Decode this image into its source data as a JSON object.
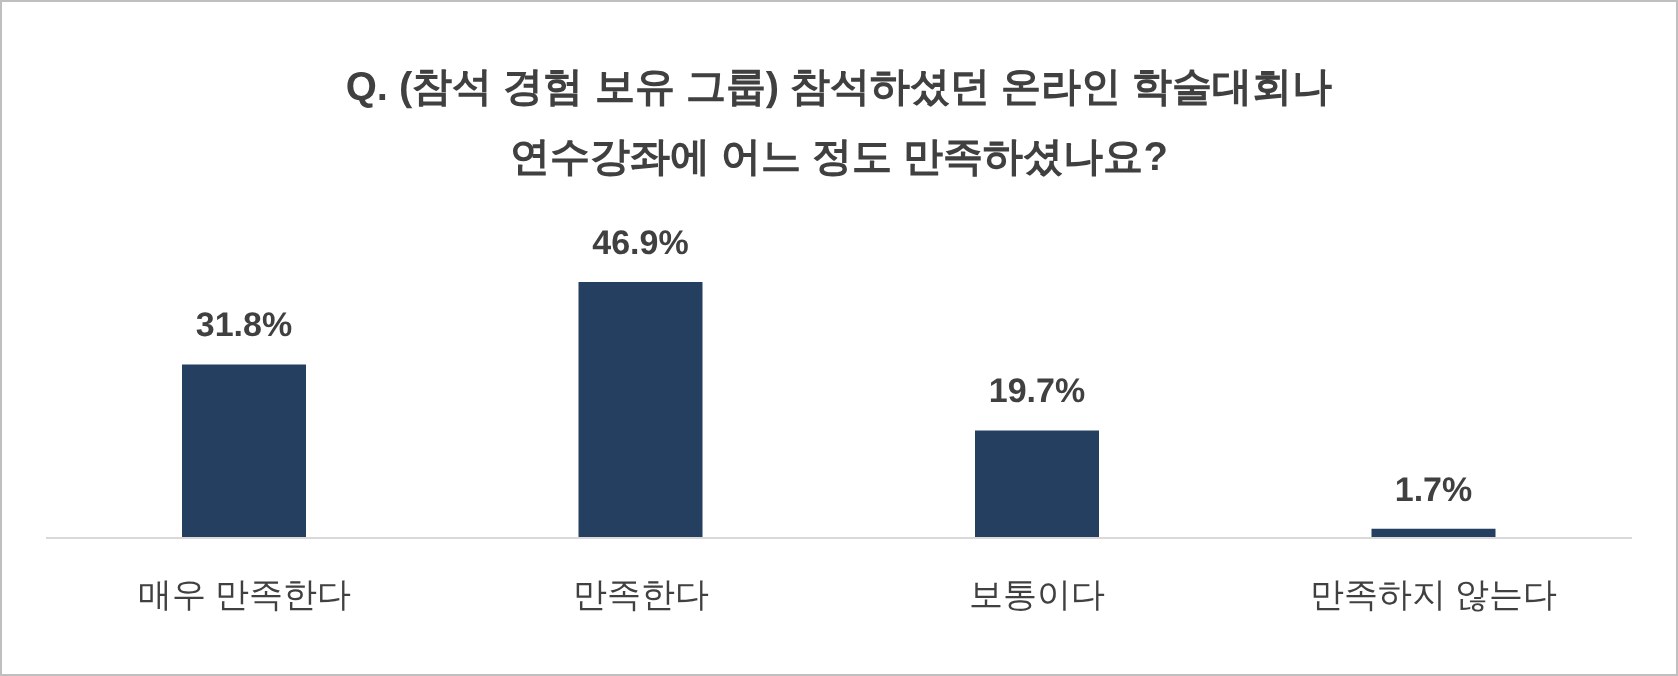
{
  "chart_data": {
    "type": "bar",
    "title": "Q. (참석 경험 보유 그룹) 참석하셨던 온라인 학술대회나\n연수강좌에 어느 정도 만족하셨나요?",
    "categories": [
      "매우 만족한다",
      "만족한다",
      "보통이다",
      "만족하지 않는다"
    ],
    "values": [
      31.8,
      46.9,
      19.7,
      1.7
    ],
    "value_labels": [
      "31.8%",
      "46.9%",
      "19.7%",
      "1.7%"
    ],
    "color": "#243f60",
    "grid": false,
    "legend": false
  }
}
